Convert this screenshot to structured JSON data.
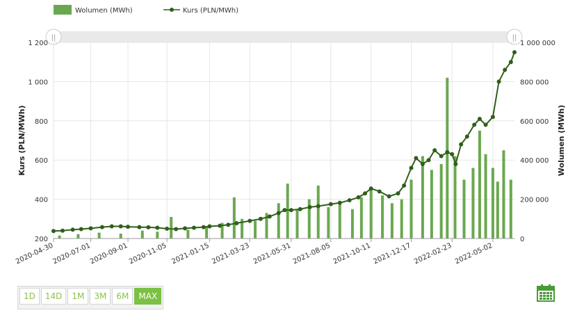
{
  "legend": {
    "volume_label": "Wolumen (MWh)",
    "price_label": "Kurs (PLN/MWh)"
  },
  "colors": {
    "volume": "#6aa84f",
    "price": "#2f5f1a",
    "grid": "#e6e6e6",
    "accent": "#7cc142"
  },
  "range_buttons": [
    {
      "label": "1D",
      "active": false
    },
    {
      "label": "14D",
      "active": false
    },
    {
      "label": "1M",
      "active": false
    },
    {
      "label": "3M",
      "active": false
    },
    {
      "label": "6M",
      "active": false
    },
    {
      "label": "MAX",
      "active": true
    }
  ],
  "calendar_icon": "calendar-icon",
  "chart_data": {
    "type": "bar+line",
    "title": "",
    "x_range": [
      "2020-04-30",
      "2022-06-07"
    ],
    "x_ticks": [
      "2020-04-30",
      "2020-07-01",
      "2020-09-01",
      "2020-11-05",
      "2021-01-15",
      "2021-03-23",
      "2021-05-31",
      "2021-08-05",
      "2021-10-11",
      "2021-12-17",
      "2022-02-23",
      "2022-05-02"
    ],
    "left_axis": {
      "label": "Kurs (PLN/MWh)",
      "range": [
        200,
        1200
      ],
      "ticks": [
        "200",
        "400",
        "600",
        "800",
        "1 000",
        "1 200"
      ]
    },
    "right_axis": {
      "label": "Wolumen (MWh)",
      "range": [
        0,
        1000000
      ],
      "ticks": [
        "0",
        "200 000",
        "400 000",
        "600 000",
        "800 000",
        "1 000 000"
      ]
    },
    "grid": true,
    "legend_position": "top-left",
    "series": [
      {
        "name": "Kurs (PLN/MWh)",
        "type": "line",
        "axis": "left",
        "points": [
          [
            "2020-04-30",
            238
          ],
          [
            "2020-05-15",
            240
          ],
          [
            "2020-06-01",
            245
          ],
          [
            "2020-06-15",
            248
          ],
          [
            "2020-07-01",
            252
          ],
          [
            "2020-07-20",
            258
          ],
          [
            "2020-08-05",
            262
          ],
          [
            "2020-08-20",
            262
          ],
          [
            "2020-09-01",
            260
          ],
          [
            "2020-09-20",
            258
          ],
          [
            "2020-10-05",
            257
          ],
          [
            "2020-10-20",
            255
          ],
          [
            "2020-11-05",
            250
          ],
          [
            "2020-11-20",
            248
          ],
          [
            "2020-12-05",
            252
          ],
          [
            "2020-12-20",
            255
          ],
          [
            "2021-01-05",
            258
          ],
          [
            "2021-01-15",
            262
          ],
          [
            "2021-02-01",
            265
          ],
          [
            "2021-02-15",
            270
          ],
          [
            "2021-03-01",
            278
          ],
          [
            "2021-03-23",
            290
          ],
          [
            "2021-04-10",
            300
          ],
          [
            "2021-04-25",
            312
          ],
          [
            "2021-05-10",
            330
          ],
          [
            "2021-05-20",
            345
          ],
          [
            "2021-05-31",
            345
          ],
          [
            "2021-06-15",
            350
          ],
          [
            "2021-07-01",
            360
          ],
          [
            "2021-07-15",
            365
          ],
          [
            "2021-08-05",
            375
          ],
          [
            "2021-08-20",
            382
          ],
          [
            "2021-09-05",
            395
          ],
          [
            "2021-09-20",
            410
          ],
          [
            "2021-10-01",
            430
          ],
          [
            "2021-10-11",
            455
          ],
          [
            "2021-10-25",
            440
          ],
          [
            "2021-11-10",
            415
          ],
          [
            "2021-11-25",
            430
          ],
          [
            "2021-12-05",
            470
          ],
          [
            "2021-12-17",
            560
          ],
          [
            "2021-12-25",
            610
          ],
          [
            "2022-01-05",
            580
          ],
          [
            "2022-01-15",
            600
          ],
          [
            "2022-01-25",
            650
          ],
          [
            "2022-02-05",
            620
          ],
          [
            "2022-02-15",
            640
          ],
          [
            "2022-02-23",
            630
          ],
          [
            "2022-03-01",
            580
          ],
          [
            "2022-03-10",
            680
          ],
          [
            "2022-03-20",
            720
          ],
          [
            "2022-04-01",
            780
          ],
          [
            "2022-04-10",
            810
          ],
          [
            "2022-04-20",
            780
          ],
          [
            "2022-05-02",
            820
          ],
          [
            "2022-05-12",
            1000
          ],
          [
            "2022-05-22",
            1060
          ],
          [
            "2022-06-01",
            1100
          ],
          [
            "2022-06-07",
            1150
          ]
        ]
      },
      {
        "name": "Wolumen (MWh)",
        "type": "bar",
        "axis": "right",
        "points": [
          [
            "2020-05-10",
            15000
          ],
          [
            "2020-06-10",
            22000
          ],
          [
            "2020-07-15",
            30000
          ],
          [
            "2020-08-20",
            25000
          ],
          [
            "2020-09-25",
            40000
          ],
          [
            "2020-10-20",
            35000
          ],
          [
            "2020-11-12",
            110000
          ],
          [
            "2020-12-10",
            45000
          ],
          [
            "2021-01-10",
            60000
          ],
          [
            "2021-02-05",
            80000
          ],
          [
            "2021-02-25",
            210000
          ],
          [
            "2021-03-10",
            100000
          ],
          [
            "2021-04-01",
            90000
          ],
          [
            "2021-04-20",
            130000
          ],
          [
            "2021-05-10",
            180000
          ],
          [
            "2021-05-25",
            280000
          ],
          [
            "2021-06-10",
            150000
          ],
          [
            "2021-06-30",
            200000
          ],
          [
            "2021-07-15",
            270000
          ],
          [
            "2021-08-01",
            160000
          ],
          [
            "2021-08-20",
            190000
          ],
          [
            "2021-09-10",
            150000
          ],
          [
            "2021-09-25",
            210000
          ],
          [
            "2021-10-11",
            250000
          ],
          [
            "2021-10-30",
            220000
          ],
          [
            "2021-11-15",
            180000
          ],
          [
            "2021-12-01",
            200000
          ],
          [
            "2021-12-17",
            300000
          ],
          [
            "2022-01-05",
            420000
          ],
          [
            "2022-01-20",
            350000
          ],
          [
            "2022-02-05",
            380000
          ],
          [
            "2022-02-15",
            820000
          ],
          [
            "2022-02-28",
            420000
          ],
          [
            "2022-03-15",
            300000
          ],
          [
            "2022-03-30",
            360000
          ],
          [
            "2022-04-10",
            550000
          ],
          [
            "2022-04-20",
            430000
          ],
          [
            "2022-05-02",
            360000
          ],
          [
            "2022-05-10",
            290000
          ],
          [
            "2022-05-20",
            450000
          ],
          [
            "2022-06-01",
            300000
          ]
        ]
      }
    ]
  }
}
